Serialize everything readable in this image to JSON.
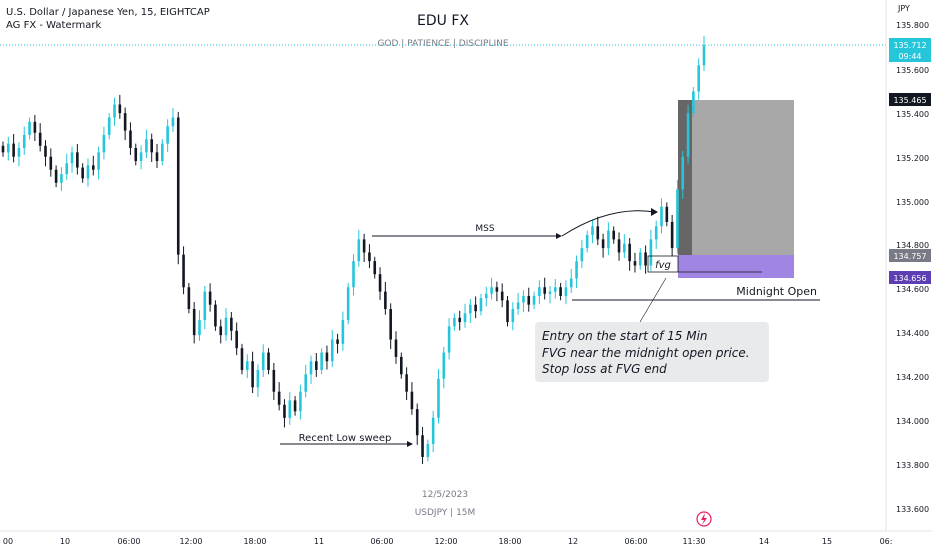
{
  "symbol_header": {
    "line1": "U.S. Dollar / Japanese Yen, 15, EIGHTCAP",
    "line2": "AG FX - Watermark"
  },
  "brand": {
    "title": "EDU FX",
    "tagline": "GOD  |  PATIENCE  |  DISCIPLINE"
  },
  "price_axis": {
    "currency": "JPY",
    "ticks": [
      "135.800",
      "135.600",
      "135.400",
      "135.200",
      "135.000",
      "134.800",
      "134.600",
      "134.400",
      "134.200",
      "134.000",
      "133.800",
      "133.600"
    ],
    "current_price": "135.712",
    "countdown": "09:44",
    "tp_label": "135.465",
    "entry_label": "134.757",
    "sl_label": "134.656"
  },
  "time_axis": {
    "ticks": [
      "00",
      "10",
      "06:00",
      "12:00",
      "18:00",
      "11",
      "06:00",
      "12:00",
      "18:00",
      "12",
      "06:00",
      "11:30",
      "14",
      "15",
      "06:"
    ]
  },
  "annotations": {
    "mss": "MSS",
    "fvg": "fvg",
    "recent_low_sweep": "Recent Low sweep",
    "midnight_open": "Midnight Open",
    "note_line1": "Entry on the start of 15 Min",
    "note_line2": "FVG near the midnight open price.",
    "note_line3": "Stop loss at FVG end"
  },
  "watermark": {
    "date": "12/5/2023",
    "symbol": "USDJPY  |  15M"
  },
  "colors": {
    "up": "#26c6da",
    "down": "#131722",
    "accent_blue": "#2962ff",
    "tp_zone": "#9e9e9e",
    "sl_zone": "#9c7ee0",
    "sl_label_bg": "#5b3fb3",
    "note_bg": "#e9eaec"
  },
  "chart_data": {
    "type": "candlestick",
    "ylim": [
      133.48,
      135.92
    ],
    "close_series": [
      135.22,
      135.26,
      135.2,
      135.24,
      135.3,
      135.36,
      135.31,
      135.25,
      135.2,
      135.14,
      135.08,
      135.12,
      135.17,
      135.22,
      135.15,
      135.1,
      135.16,
      135.14,
      135.22,
      135.3,
      135.38,
      135.44,
      135.4,
      135.32,
      135.24,
      135.18,
      135.22,
      135.28,
      135.22,
      135.18,
      135.26,
      135.34,
      135.38,
      134.75,
      134.6,
      134.5,
      134.38,
      134.45,
      134.58,
      134.52,
      134.42,
      134.38,
      134.46,
      134.4,
      134.32,
      134.22,
      134.26,
      134.14,
      134.22,
      134.3,
      134.22,
      134.12,
      134.06,
      134.0,
      134.08,
      134.03,
      134.12,
      134.2,
      134.26,
      134.22,
      134.3,
      134.26,
      134.36,
      134.34,
      134.45,
      134.6,
      134.72,
      134.82,
      134.76,
      134.72,
      134.66,
      134.58,
      134.5,
      134.36,
      134.28,
      134.2,
      134.12,
      134.04,
      133.92,
      133.82,
      133.88,
      134.0,
      134.18,
      134.3,
      134.42,
      134.46,
      134.44,
      134.48,
      134.52,
      134.49,
      134.55,
      134.57,
      134.6,
      134.58,
      134.54,
      134.44,
      134.5,
      134.53,
      134.56,
      134.52,
      134.56,
      134.6,
      134.57,
      134.58,
      134.6,
      134.56,
      134.6,
      134.64,
      134.72,
      134.78,
      134.84,
      134.88,
      134.82,
      134.78,
      134.86,
      134.82,
      134.76,
      134.8,
      134.72,
      134.7,
      134.76,
      134.7,
      134.82,
      134.88,
      134.97,
      134.9,
      134.78,
      135.05,
      135.2,
      135.4,
      135.5,
      135.62,
      135.712
    ],
    "recent_low_sweep_low": 133.75,
    "mss_level": 134.85,
    "midnight_open": 134.55,
    "entry": 134.757,
    "stop_loss": 134.656,
    "take_profit": 135.465,
    "current_price": 135.712
  }
}
